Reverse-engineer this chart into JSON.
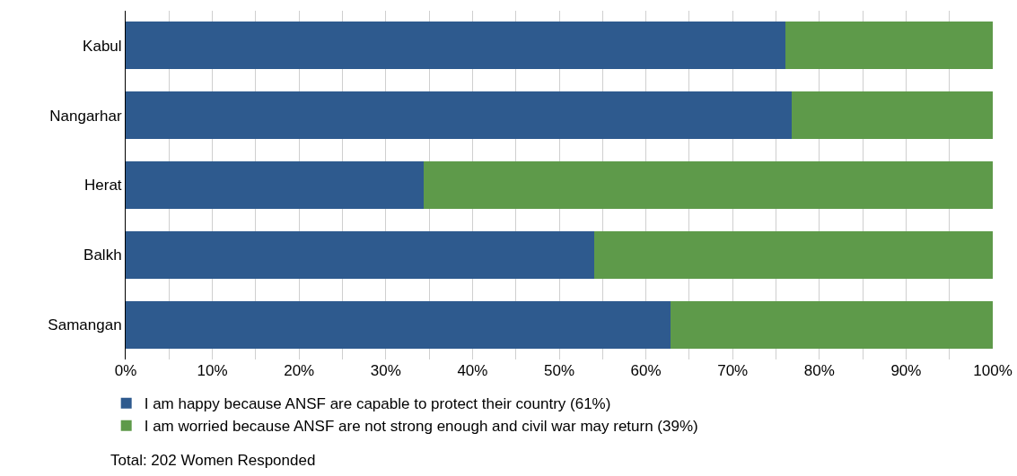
{
  "chart_data": {
    "type": "bar",
    "orientation": "horizontal",
    "stacked": true,
    "categories": [
      "Kabul",
      "Nangarhar",
      "Herat",
      "Balkh",
      "Samangan"
    ],
    "series": [
      {
        "name": "I am happy because ANSF are capable to protect their country (61%)",
        "color": "#2e5a8e",
        "values": [
          76.1,
          76.8,
          34.4,
          54.0,
          62.8
        ]
      },
      {
        "name": "I am worried because ANSF are not strong enough and civil war may return (39%)",
        "color": "#5e9a4a",
        "values": [
          23.9,
          23.2,
          65.6,
          46.0,
          37.2
        ]
      }
    ],
    "xlim": [
      0,
      100
    ],
    "xticks": [
      {
        "value": 0,
        "label": "0%"
      },
      {
        "value": 5,
        "label": null
      },
      {
        "value": 10,
        "label": "10%"
      },
      {
        "value": 15,
        "label": null
      },
      {
        "value": 20,
        "label": "20%"
      },
      {
        "value": 25,
        "label": null
      },
      {
        "value": 30,
        "label": "30%"
      },
      {
        "value": 35,
        "label": null
      },
      {
        "value": 40,
        "label": "40%"
      },
      {
        "value": 45,
        "label": null
      },
      {
        "value": 50,
        "label": "50%"
      },
      {
        "value": 55,
        "label": null
      },
      {
        "value": 60,
        "label": "60%"
      },
      {
        "value": 65,
        "label": null
      },
      {
        "value": 70,
        "label": "70%"
      },
      {
        "value": 75,
        "label": null
      },
      {
        "value": 80,
        "label": "80%"
      },
      {
        "value": 85,
        "label": null
      },
      {
        "value": 90,
        "label": "90%"
      },
      {
        "value": 95,
        "label": null
      },
      {
        "value": 100,
        "label": "100%"
      }
    ],
    "grid": "x",
    "legend": "bottom",
    "annotations": [
      "Total: 202 Women Responded"
    ]
  }
}
